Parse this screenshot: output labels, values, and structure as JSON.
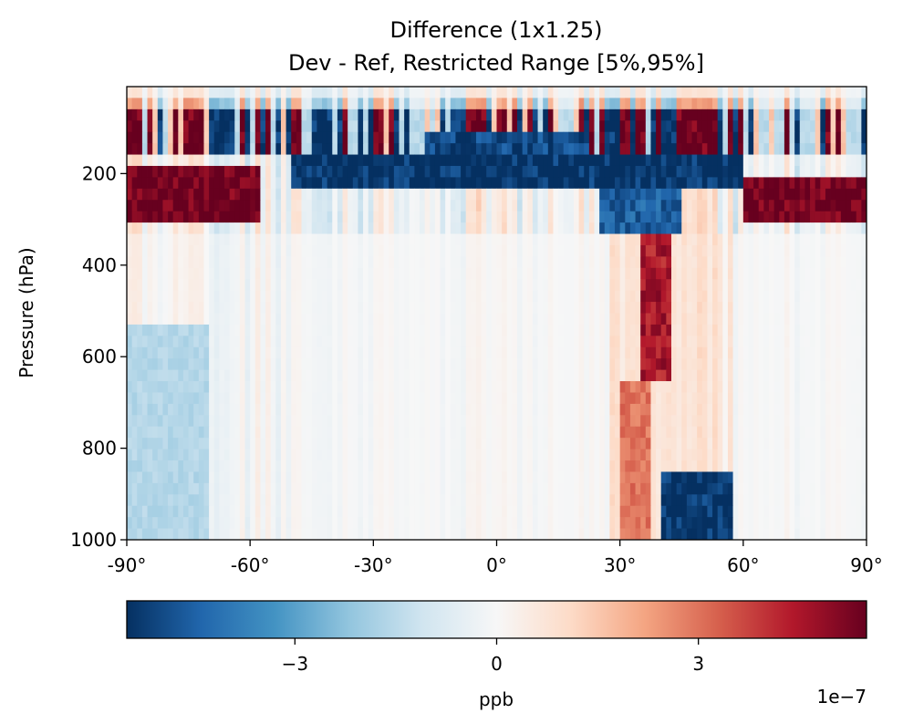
{
  "chart_data": {
    "type": "heatmap",
    "title": "Difference (1x1.25)",
    "subtitle": "Dev - Ref, Restricted Range [5%,95%]",
    "xlabel": "",
    "ylabel": "Pressure (hPa)",
    "xlim": [
      -90,
      90
    ],
    "ylim": [
      1000,
      10
    ],
    "x_ticks": [
      {
        "value": -90,
        "label": "-90°"
      },
      {
        "value": -60,
        "label": "-60°"
      },
      {
        "value": -30,
        "label": "-30°"
      },
      {
        "value": 0,
        "label": "0°"
      },
      {
        "value": 30,
        "label": "30°"
      },
      {
        "value": 60,
        "label": "60°"
      },
      {
        "value": 90,
        "label": "90°"
      }
    ],
    "y_ticks": [
      {
        "value": 200,
        "label": "200"
      },
      {
        "value": 400,
        "label": "400"
      },
      {
        "value": 600,
        "label": "600"
      },
      {
        "value": 800,
        "label": "800"
      },
      {
        "value": 1000,
        "label": "1000"
      }
    ],
    "colormap": "RdBu_r",
    "colorbar": {
      "label": "ppb",
      "vmin": -5.5e-07,
      "vmax": 5.5e-07,
      "ticks": [
        {
          "value": -3e-07,
          "label": "−3"
        },
        {
          "value": 0,
          "label": "0"
        },
        {
          "value": 3e-07,
          "label": "3"
        }
      ],
      "offset_label": "1e−7"
    },
    "regions": [
      {
        "lat": [
          -90,
          -57
        ],
        "p": [
          180,
          300
        ],
        "value": 5.5e-07
      },
      {
        "lat": [
          60,
          90
        ],
        "p": [
          215,
          300
        ],
        "value": 5.5e-07
      },
      {
        "lat": [
          -50,
          60
        ],
        "p": [
          155,
          225
        ],
        "value": -5.5e-07
      },
      {
        "lat": [
          -18,
          22
        ],
        "p": [
          100,
          160
        ],
        "value": -5e-07
      },
      {
        "lat": [
          25,
          45
        ],
        "p": [
          225,
          340
        ],
        "value": -4.5e-07
      },
      {
        "lat": [
          40,
          57
        ],
        "p": [
          850,
          1000
        ],
        "value": -5.5e-07
      },
      {
        "lat": [
          -90,
          -70
        ],
        "p": [
          520,
          1000
        ],
        "value": -1.6e-07
      },
      {
        "lat": [
          35,
          42
        ],
        "p": [
          340,
          660
        ],
        "value": 4.5e-07
      },
      {
        "lat": [
          30,
          37
        ],
        "p": [
          650,
          1000
        ],
        "value": 3e-07
      }
    ]
  }
}
